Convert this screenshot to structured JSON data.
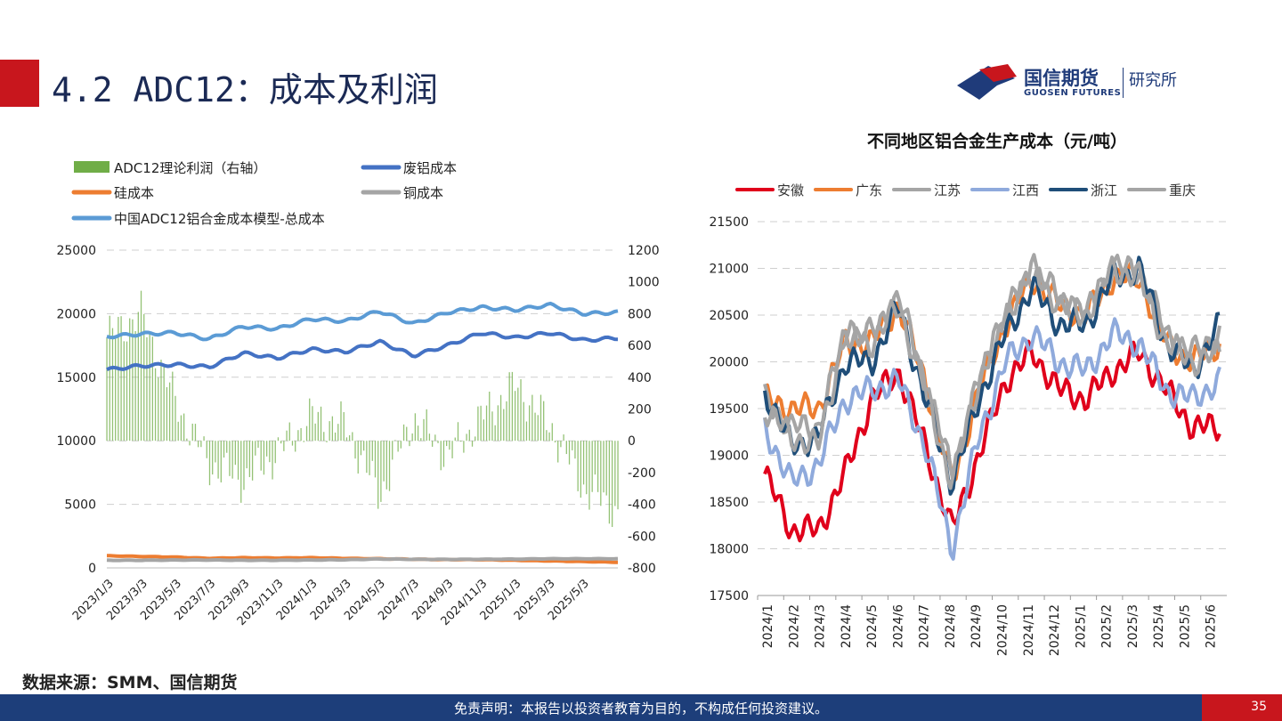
{
  "header": {
    "title": "4.2 ADC12：成本及利润"
  },
  "logo": {
    "name": "国信期货",
    "name_en": "GUOSEN FUTURES",
    "sub": "研究所"
  },
  "source": "数据来源：SMM、国信期货",
  "footer": {
    "disclaimer": "免责声明：本报告以投资者教育为目的，不构成任何投资建议。",
    "page": "35"
  },
  "colors": {
    "title_bar": "#c8161d",
    "footer_bg": "#1d3e7a",
    "footer_accent": "#c8161d",
    "title_text": "#1b2a55"
  },
  "chart_data": [
    {
      "type": "line",
      "title": "",
      "legend_position": "top",
      "x_tick_labels": [
        "2023/1/3",
        "2023/3/3",
        "2023/5/3",
        "2023/7/3",
        "2023/9/3",
        "2023/11/3",
        "2024/1/3",
        "2024/3/3",
        "2024/5/3",
        "2024/7/3",
        "2024/9/3",
        "2024/11/3",
        "2025/1/3",
        "2025/3/3",
        "2025/5/3"
      ],
      "y_left": {
        "min": 0,
        "max": 25000,
        "ticks": [
          "0",
          "5000",
          "10000",
          "15000",
          "20000",
          "25000"
        ]
      },
      "y_right": {
        "min": -800,
        "max": 1200,
        "ticks": [
          "-800",
          "-600",
          "-400",
          "-200",
          "0",
          "200",
          "400",
          "600",
          "800",
          "1000",
          "1200"
        ]
      },
      "x": [
        "2023/1",
        "2023/3",
        "2023/5",
        "2023/7",
        "2023/9",
        "2023/11",
        "2024/1",
        "2024/3",
        "2024/5",
        "2024/7",
        "2024/9",
        "2024/11",
        "2025/1",
        "2025/3",
        "2025/5",
        "2025/6"
      ],
      "series": [
        {
          "name": "ADC12理论利润（右轴）",
          "kind": "bar",
          "axis": "right",
          "color": "#70ad47",
          "values": [
            650,
            800,
            250,
            -150,
            -250,
            -80,
            150,
            100,
            -350,
            150,
            -100,
            150,
            350,
            100,
            -300,
            -450
          ]
        },
        {
          "name": "废铝成本",
          "kind": "line",
          "axis": "left",
          "color": "#4472c4",
          "values": [
            15600,
            15900,
            16000,
            15800,
            16900,
            16500,
            17200,
            17000,
            17800,
            16700,
            17500,
            18500,
            18100,
            18500,
            17900,
            18100
          ]
        },
        {
          "name": "硅成本",
          "kind": "line",
          "axis": "left",
          "color": "#ed7d31",
          "values": [
            950,
            900,
            850,
            750,
            800,
            780,
            800,
            750,
            720,
            680,
            650,
            650,
            600,
            550,
            500,
            450
          ]
        },
        {
          "name": "铜成本",
          "kind": "line",
          "axis": "left",
          "color": "#a5a5a5",
          "values": [
            600,
            600,
            620,
            620,
            600,
            600,
            620,
            640,
            700,
            680,
            670,
            680,
            690,
            720,
            720,
            720
          ]
        },
        {
          "name": "中国ADC12铝合金成本模型-总成本",
          "kind": "line",
          "axis": "left",
          "color": "#5b9bd5",
          "values": [
            18200,
            18400,
            18500,
            18000,
            19000,
            18800,
            19600,
            19400,
            20200,
            19200,
            20100,
            20500,
            20300,
            20700,
            20000,
            20100
          ]
        }
      ]
    },
    {
      "type": "line",
      "title": "不同地区铝合金生产成本（元/吨）",
      "legend_position": "top",
      "x": [
        "2024/1",
        "2024/2",
        "2024/3",
        "2024/4",
        "2024/5",
        "2024/6",
        "2024/7",
        "2024/8",
        "2024/9",
        "2024/10",
        "2024/11",
        "2024/12",
        "2025/1",
        "2025/2",
        "2025/3",
        "2025/4",
        "2025/5",
        "2025/6"
      ],
      "ylim": [
        17500,
        21500
      ],
      "y_ticks": [
        "17500",
        "18000",
        "18500",
        "19000",
        "19500",
        "20000",
        "20500",
        "21000",
        "21500"
      ],
      "series": [
        {
          "name": "安徽",
          "color": "#e0001b",
          "values": [
            18800,
            18200,
            18200,
            18800,
            19600,
            19900,
            19100,
            18200,
            19000,
            19800,
            20100,
            19700,
            19600,
            19900,
            20100,
            19700,
            19300,
            19300
          ]
        },
        {
          "name": "广东",
          "color": "#ed7d31",
          "values": [
            19600,
            19500,
            19500,
            20200,
            20200,
            20600,
            19800,
            18700,
            19700,
            20400,
            20900,
            20600,
            20500,
            20900,
            20900,
            20200,
            20000,
            20200
          ]
        },
        {
          "name": "江苏",
          "color": "#a5a5a5",
          "values": [
            19600,
            19300,
            19300,
            20300,
            20300,
            20700,
            19800,
            18800,
            19800,
            20500,
            21000,
            20700,
            20500,
            21000,
            21000,
            20300,
            20100,
            20300
          ]
        },
        {
          "name": "江西",
          "color": "#8faadc",
          "values": [
            19300,
            18700,
            18900,
            19600,
            19700,
            19800,
            19100,
            18000,
            19200,
            20000,
            20300,
            20000,
            19900,
            20300,
            20200,
            19700,
            19600,
            19800
          ]
        },
        {
          "name": "浙江",
          "color": "#1f4e79",
          "values": [
            19700,
            19100,
            19200,
            20000,
            20000,
            20600,
            19600,
            18700,
            19600,
            20300,
            20800,
            20400,
            20400,
            20900,
            21000,
            20200,
            19900,
            20400
          ]
        },
        {
          "name": "重庆",
          "color": "#a5a5a5",
          "values": [
            19500,
            19200,
            19100,
            20300,
            20200,
            20600,
            19700,
            18700,
            19800,
            20500,
            21000,
            20600,
            20500,
            21000,
            20900,
            20200,
            20000,
            20100
          ]
        }
      ]
    }
  ]
}
